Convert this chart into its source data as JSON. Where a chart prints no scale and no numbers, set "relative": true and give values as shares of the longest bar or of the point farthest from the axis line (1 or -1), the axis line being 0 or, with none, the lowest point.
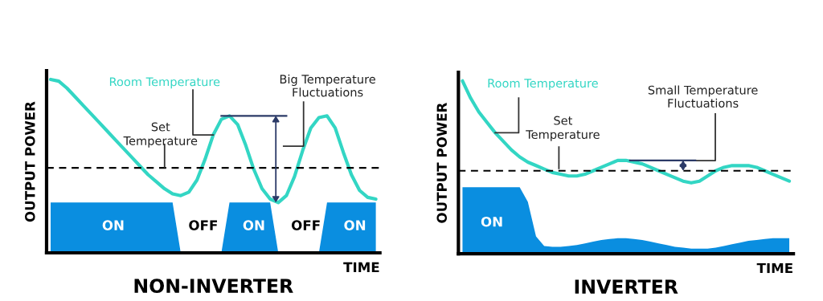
{
  "chart_data": [
    {
      "type": "line",
      "title": "NON-INVERTER",
      "xlabel": "TIME",
      "ylabel": "OUTPUT POWER",
      "relative": true,
      "tick_labels": false,
      "legend": false,
      "categories": [
        null,
        null,
        null,
        null,
        null,
        null,
        null,
        null,
        null,
        null,
        null,
        null,
        null,
        null,
        null,
        null,
        null,
        null,
        null,
        null,
        null,
        null,
        null,
        null,
        null,
        null,
        null,
        null,
        null,
        null,
        null,
        null,
        null,
        null,
        null,
        null,
        null,
        null,
        null,
        null,
        null
      ],
      "series": [
        {
          "type": "area",
          "color": "#0a8ee0",
          "values": [
            0.29,
            0.29,
            0.29,
            0.29,
            0.29,
            0.29,
            0.29,
            0.29,
            0.29,
            0.29,
            0.29,
            0.29,
            0.29,
            0.29,
            0.29,
            0.29,
            0,
            0,
            0,
            0,
            0,
            0,
            0.29,
            0.29,
            0.29,
            0.29,
            0.29,
            0.29,
            0,
            0,
            0,
            0,
            0,
            0,
            0.29,
            0.29,
            0.29,
            0.29,
            0.29,
            0.29,
            0.29
          ]
        },
        {
          "name": "Room Temperature",
          "color": "#33d6c4",
          "values": [
            1.0,
            0.99,
            0.95,
            0.9,
            0.85,
            0.8,
            0.75,
            0.7,
            0.65,
            0.6,
            0.55,
            0.5,
            0.45,
            0.41,
            0.37,
            0.34,
            0.33,
            0.35,
            0.42,
            0.54,
            0.68,
            0.77,
            0.79,
            0.74,
            0.62,
            0.48,
            0.37,
            0.31,
            0.29,
            0.33,
            0.44,
            0.59,
            0.72,
            0.78,
            0.79,
            0.72,
            0.58,
            0.45,
            0.36,
            0.32,
            0.31
          ]
        }
      ],
      "ref_lines": [
        {
          "axis": "y",
          "value": 0.49,
          "label": "Set Temperature",
          "color": "#000000",
          "line_style": "dashed"
        }
      ],
      "annotations": [
        "Big Temperature Fluctuations",
        "ON",
        "OFF",
        "ON",
        "OFF",
        "ON"
      ]
    },
    {
      "type": "line",
      "title": "INVERTER",
      "xlabel": "TIME",
      "ylabel": "OUTPUT POWER",
      "relative": true,
      "tick_labels": false,
      "legend": false,
      "categories": [
        null,
        null,
        null,
        null,
        null,
        null,
        null,
        null,
        null,
        null,
        null,
        null,
        null,
        null,
        null,
        null,
        null,
        null,
        null,
        null,
        null,
        null,
        null,
        null,
        null,
        null,
        null,
        null,
        null,
        null,
        null,
        null,
        null,
        null,
        null,
        null,
        null,
        null,
        null,
        null,
        null
      ],
      "series": [
        {
          "type": "area",
          "color": "#0a8ee0",
          "values": [
            0.385,
            0.385,
            0.385,
            0.385,
            0.385,
            0.385,
            0.385,
            0.385,
            0.3,
            0.1,
            0.045,
            0.04,
            0.04,
            0.045,
            0.05,
            0.06,
            0.07,
            0.08,
            0.085,
            0.09,
            0.09,
            0.085,
            0.08,
            0.07,
            0.06,
            0.05,
            0.04,
            0.035,
            0.03,
            0.03,
            0.03,
            0.035,
            0.045,
            0.055,
            0.065,
            0.075,
            0.08,
            0.085,
            0.09,
            0.09,
            0.09
          ]
        },
        {
          "name": "Room Temperature",
          "color": "#33d6c4",
          "values": [
            1.0,
            0.9,
            0.82,
            0.76,
            0.7,
            0.65,
            0.6,
            0.56,
            0.53,
            0.51,
            0.49,
            0.47,
            0.46,
            0.45,
            0.45,
            0.46,
            0.48,
            0.5,
            0.52,
            0.54,
            0.54,
            0.53,
            0.52,
            0.5,
            0.48,
            0.46,
            0.44,
            0.42,
            0.41,
            0.42,
            0.45,
            0.48,
            0.5,
            0.51,
            0.51,
            0.51,
            0.5,
            0.48,
            0.46,
            0.44,
            0.42
          ]
        }
      ],
      "ref_lines": [
        {
          "axis": "y",
          "value": 0.48,
          "label": "Set Temperature",
          "color": "#000000",
          "line_style": "dashed"
        }
      ],
      "annotations": [
        "Small Temperature Fluctuations",
        "ON"
      ]
    }
  ]
}
